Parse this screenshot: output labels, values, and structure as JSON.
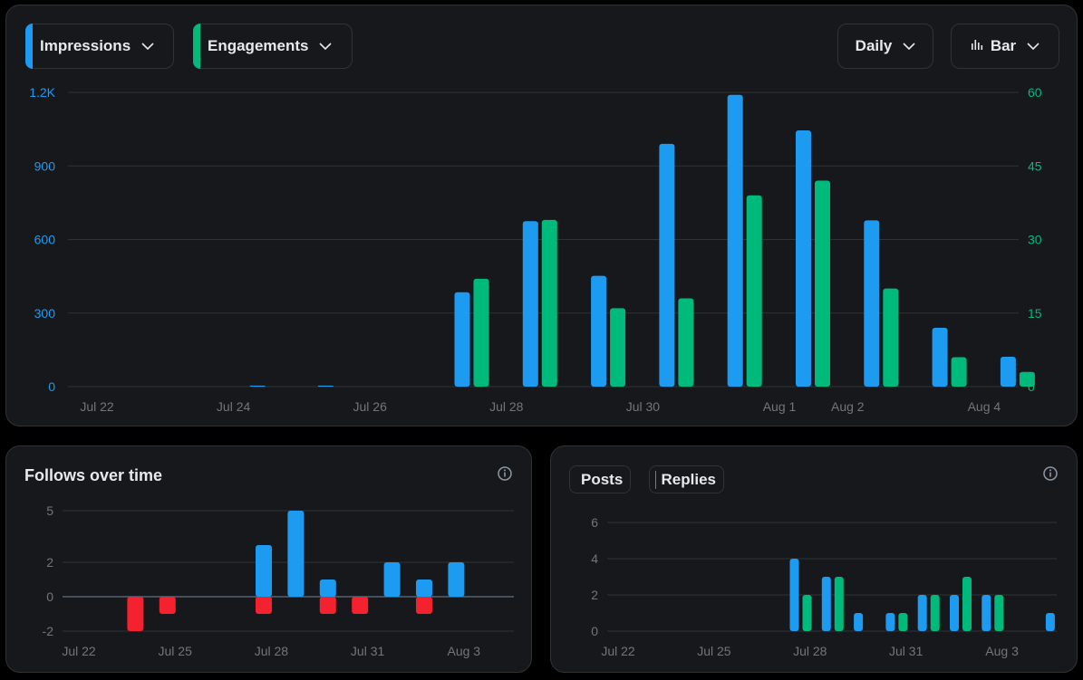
{
  "header": {
    "impressions_label": "Impressions",
    "engagements_label": "Engagements",
    "interval_label": "Daily",
    "chart_type_label": "Bar"
  },
  "colors": {
    "blue": "#1d9bf0",
    "green": "#00ba7c",
    "red": "#f4212e",
    "grid": "#2f3336",
    "tick": "#71767b"
  },
  "icons": {
    "chevron": "chevron-down-icon",
    "bar_chart": "bar-chart-icon",
    "info": "info-icon"
  },
  "follows": {
    "title": "Follows over time"
  },
  "posts_panel": {
    "posts_label": "Posts",
    "replies_label": "Replies"
  },
  "chart_data": [
    {
      "type": "bar",
      "x_labels": [
        "Jul 22",
        "Jul 24",
        "Jul 26",
        "Jul 28",
        "Jul 30",
        "Aug 1",
        "Aug 2",
        "Aug 4"
      ],
      "dates": [
        "Jul 22",
        "Jul 23",
        "Jul 24",
        "Jul 25",
        "Jul 26",
        "Jul 27",
        "Jul 28",
        "Jul 29",
        "Jul 30",
        "Jul 31",
        "Aug 1",
        "Aug 2",
        "Aug 3",
        "Aug 4"
      ],
      "series": [
        {
          "name": "Impressions",
          "axis": "left",
          "values": [
            0,
            0,
            4,
            4,
            0,
            385,
            675,
            452,
            990,
            1190,
            1045,
            678,
            240,
            122
          ]
        },
        {
          "name": "Engagements",
          "axis": "right",
          "values": [
            0,
            0,
            0,
            0,
            0,
            22,
            34,
            16,
            18,
            39,
            42,
            20,
            6,
            3
          ]
        }
      ],
      "y_left": {
        "ticks": [
          "0",
          "300",
          "600",
          "900",
          "1.2K"
        ],
        "ylim": [
          0,
          1200
        ]
      },
      "y_right": {
        "ticks": [
          "0",
          "15",
          "30",
          "45",
          "60"
        ],
        "ylim": [
          0,
          60
        ]
      },
      "grid": true
    },
    {
      "type": "bar",
      "title": "Follows over time",
      "dates": [
        "Jul 22",
        "Jul 23",
        "Jul 24",
        "Jul 25",
        "Jul 26",
        "Jul 27",
        "Jul 28",
        "Jul 29",
        "Jul 30",
        "Jul 31",
        "Aug 1",
        "Aug 2",
        "Aug 3"
      ],
      "x_labels": [
        "Jul 22",
        "Jul 25",
        "Jul 28",
        "Jul 31",
        "Aug 3"
      ],
      "gains": [
        0,
        0,
        0,
        0,
        0,
        3,
        5,
        1,
        0,
        2,
        1,
        2,
        0
      ],
      "losses": [
        0,
        -2,
        -1,
        0,
        0,
        -1,
        0,
        -1,
        -1,
        0,
        -1,
        0,
        0
      ],
      "y_ticks": [
        "5",
        "2",
        "0",
        "-2"
      ],
      "ylim": [
        -2,
        5
      ],
      "grid": true
    },
    {
      "type": "bar",
      "dates": [
        "Jul 22",
        "Jul 23",
        "Jul 24",
        "Jul 25",
        "Jul 26",
        "Jul 27",
        "Jul 28",
        "Jul 29",
        "Jul 30",
        "Jul 31",
        "Aug 1",
        "Aug 2",
        "Aug 3",
        "Aug 4"
      ],
      "x_labels": [
        "Jul 22",
        "Jul 25",
        "Jul 28",
        "Jul 31",
        "Aug 3"
      ],
      "series": [
        {
          "name": "Posts",
          "values": [
            0,
            0,
            0,
            0,
            0,
            4,
            3,
            1,
            1,
            2,
            2,
            2,
            0,
            1
          ]
        },
        {
          "name": "Replies",
          "values": [
            0,
            0,
            0,
            0,
            0,
            2,
            3,
            0,
            1,
            2,
            3,
            2,
            0,
            0
          ]
        }
      ],
      "y_ticks": [
        "0",
        "2",
        "4",
        "6"
      ],
      "ylim": [
        0,
        6
      ],
      "grid": true
    }
  ]
}
